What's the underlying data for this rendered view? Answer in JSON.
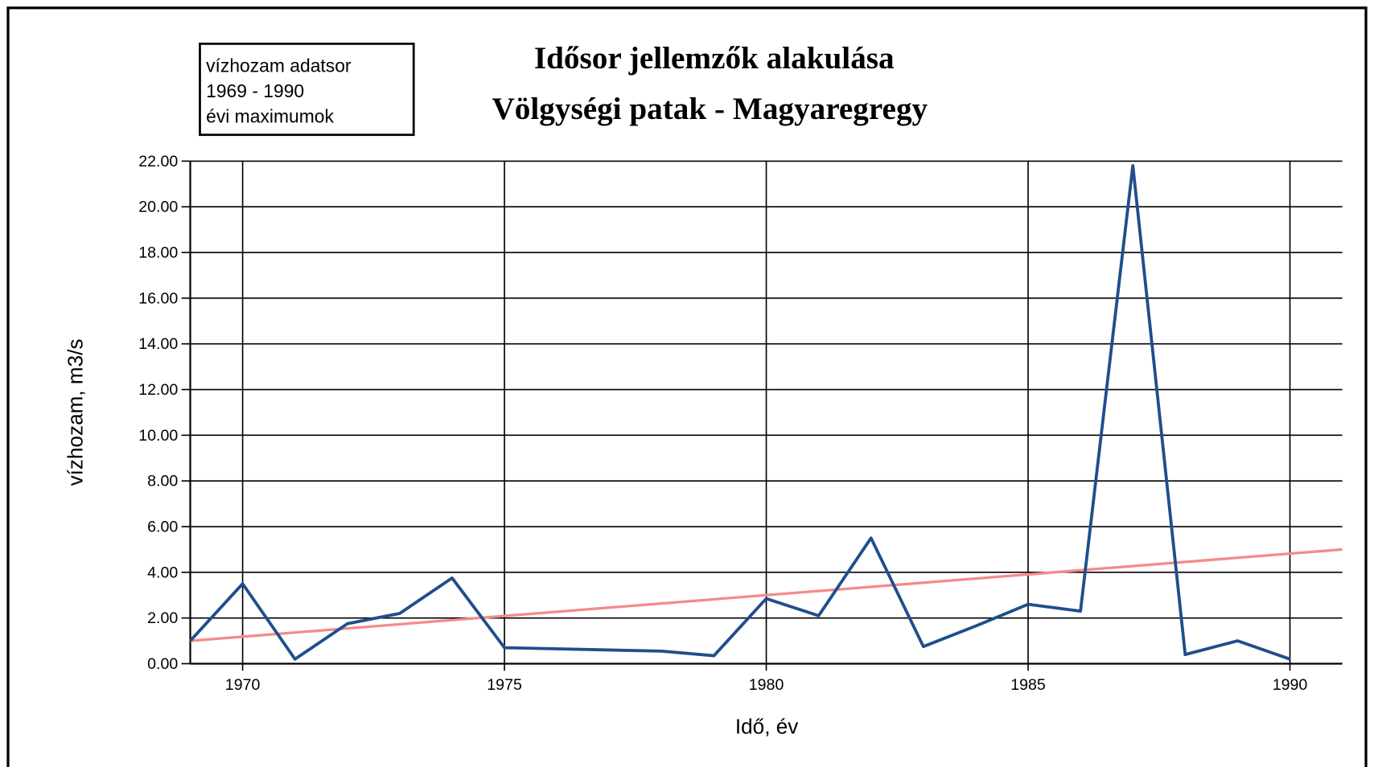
{
  "chart_data": {
    "type": "line",
    "title": "Idősor jellemzők alakulása",
    "subtitle": "Völgységi patak - Magyaregregy",
    "annotation": [
      "vízhozam adatsor",
      "1969 - 1990",
      "évi  maximumok"
    ],
    "x_label": "Idő, év",
    "y_label": "vízhozam, m3/s",
    "series": [
      {
        "name": "vízhozam",
        "color": "#1f4e8c",
        "x": [
          1969,
          1970,
          1971,
          1972,
          1973,
          1974,
          1975,
          1976,
          1977,
          1978,
          1979,
          1980,
          1981,
          1982,
          1983,
          1984,
          1985,
          1986,
          1987,
          1988,
          1989,
          1990
        ],
        "values": [
          1.0,
          3.5,
          0.2,
          1.75,
          2.2,
          3.75,
          0.7,
          0.65,
          0.6,
          0.55,
          0.35,
          2.85,
          2.1,
          5.5,
          0.75,
          1.65,
          2.6,
          2.3,
          21.8,
          0.4,
          1.0,
          0.2
        ]
      },
      {
        "name": "trend",
        "color": "#f48a8a",
        "x": [
          1969,
          1991
        ],
        "values": [
          1.0,
          5.0
        ]
      }
    ],
    "xlim": [
      1969,
      1991
    ],
    "xticks": [
      1970,
      1975,
      1980,
      1985,
      1990
    ],
    "ylim": [
      0,
      22
    ],
    "yticks": [
      {
        "value": 0,
        "label": "0.00"
      },
      {
        "value": 2,
        "label": "2.00"
      },
      {
        "value": 4,
        "label": "4.00"
      },
      {
        "value": 6,
        "label": "6.00"
      },
      {
        "value": 8,
        "label": "8.00"
      },
      {
        "value": 10,
        "label": "10.00"
      },
      {
        "value": 12,
        "label": "12.00"
      },
      {
        "value": 14,
        "label": "14.00"
      },
      {
        "value": 16,
        "label": "16.00"
      },
      {
        "value": 18,
        "label": "18.00"
      },
      {
        "value": 20,
        "label": "20.00"
      },
      {
        "value": 22,
        "label": "22.00"
      }
    ],
    "grid": true
  }
}
